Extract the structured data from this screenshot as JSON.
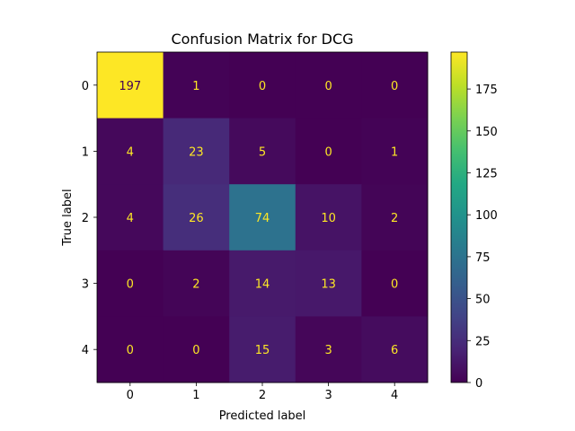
{
  "chart_data": {
    "type": "heatmap",
    "title": "Confusion Matrix for DCG",
    "xlabel": "Predicted label",
    "ylabel": "True label",
    "x_categories": [
      "0",
      "1",
      "2",
      "3",
      "4"
    ],
    "y_categories": [
      "0",
      "1",
      "2",
      "3",
      "4"
    ],
    "matrix": [
      [
        197,
        1,
        0,
        0,
        0
      ],
      [
        4,
        23,
        5,
        0,
        1
      ],
      [
        4,
        26,
        74,
        10,
        2
      ],
      [
        0,
        2,
        14,
        13,
        0
      ],
      [
        0,
        0,
        15,
        3,
        6
      ]
    ],
    "colormap": "viridis",
    "colorbar": {
      "range": [
        0,
        197
      ],
      "ticks": [
        0,
        25,
        50,
        75,
        100,
        125,
        150,
        175
      ],
      "tick_labels": [
        "0",
        "25",
        "50",
        "75",
        "100",
        "125",
        "150",
        "175"
      ]
    },
    "text_color_low": "#fde725",
    "text_color_high": "#440154",
    "grid": false
  }
}
